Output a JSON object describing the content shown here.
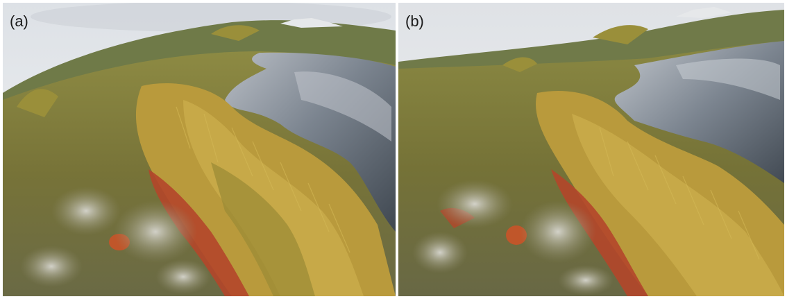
{
  "panels": [
    {
      "label": "(a)"
    },
    {
      "label": "(b)"
    }
  ],
  "colors": {
    "sky": "#e9ecef",
    "cloud": "#cfd3d8",
    "water": "#5a6470",
    "water_light": "#a7adb5",
    "grass_yellow": "#c4a642",
    "grass_green": "#8a8d3a",
    "heath_red": "#b4462a",
    "lichen": "#b9b8ad",
    "moss": "#7d7a3c"
  }
}
